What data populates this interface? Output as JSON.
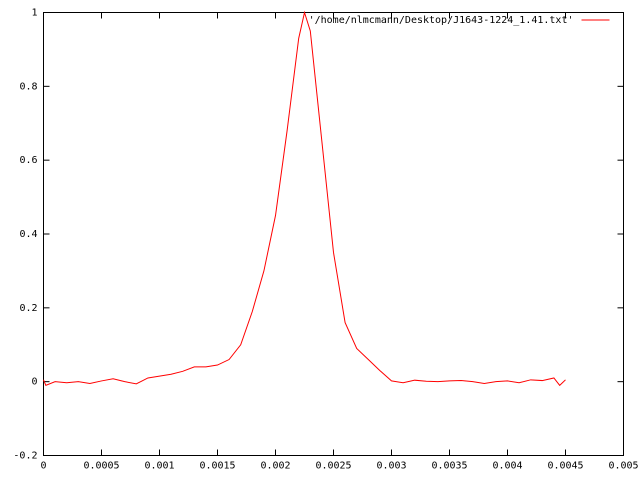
{
  "chart_data": {
    "type": "line",
    "x": [
      0,
      2e-05,
      0.0001,
      0.0002,
      0.0003,
      0.0004,
      0.0005,
      0.0006,
      0.0007,
      0.0008,
      0.0009,
      0.001,
      0.0011,
      0.0012,
      0.0013,
      0.0014,
      0.0015,
      0.0016,
      0.0017,
      0.0018,
      0.0019,
      0.002,
      0.0021,
      0.0022,
      0.00225,
      0.0023,
      0.0024,
      0.0025,
      0.0026,
      0.0027,
      0.0028,
      0.0029,
      0.003,
      0.0031,
      0.0032,
      0.0033,
      0.0034,
      0.0035,
      0.0036,
      0.0037,
      0.0038,
      0.0039,
      0.004,
      0.0041,
      0.0042,
      0.0043,
      0.0044,
      0.00445,
      0.0045
    ],
    "series": [
      {
        "name": "'/home/nlmcmann/Desktop/J1643-1224_1.41.txt'",
        "color": "#ff0000",
        "values": [
          0.005,
          -0.01,
          0,
          -0.003,
          0,
          -0.005,
          0.002,
          0.008,
          0,
          -0.006,
          0.01,
          0.015,
          0.02,
          0.028,
          0.04,
          0.04,
          0.045,
          0.06,
          0.1,
          0.19,
          0.3,
          0.45,
          0.68,
          0.93,
          1,
          0.95,
          0.65,
          0.35,
          0.16,
          0.09,
          0.06,
          0.03,
          0.002,
          -0.003,
          0.004,
          0.001,
          0,
          0.002,
          0.003,
          0,
          -0.005,
          0,
          0.002,
          -0.003,
          0.005,
          0.003,
          0.01,
          -0.01,
          0.005
        ]
      }
    ],
    "xlim": [
      0,
      0.005
    ],
    "xticks": [
      0,
      0.0005,
      0.001,
      0.0015,
      0.002,
      0.0025,
      0.003,
      0.0035,
      0.004,
      0.0045,
      0.005
    ],
    "ylim": [
      -0.2,
      1
    ],
    "yticks": [
      -0.2,
      0,
      0.2,
      0.4,
      0.6,
      0.8,
      1
    ],
    "grid": false,
    "legend": "top-right"
  }
}
